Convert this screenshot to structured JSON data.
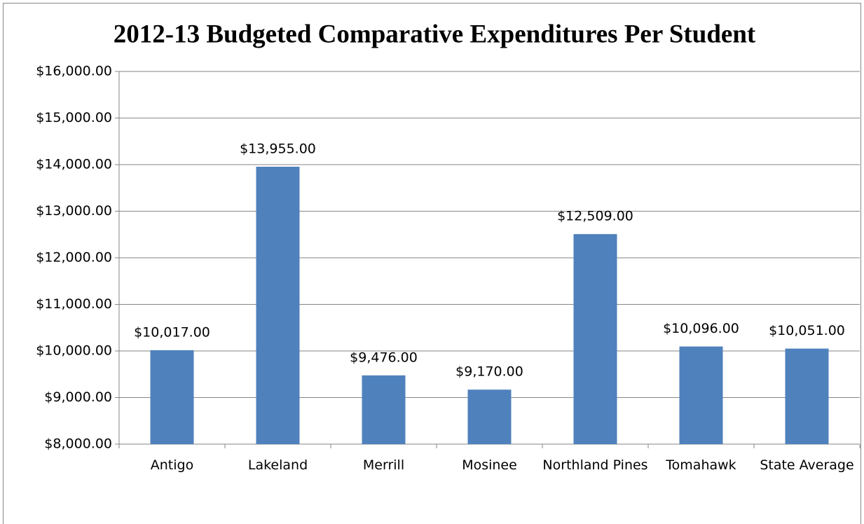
{
  "chart_data": {
    "type": "bar",
    "title": "2012-13 Budgeted Comparative Expenditures Per Student",
    "categories": [
      "Antigo",
      "Lakeland",
      "Merrill",
      "Mosinee",
      "Northland Pines",
      "Tomahawk",
      "State Average"
    ],
    "values": [
      10017,
      13955,
      9476,
      9170,
      12509,
      10096,
      10051
    ],
    "value_labels": [
      "$10,017.00",
      "$13,955.00",
      "$9,476.00",
      "$9,170.00",
      "$12,509.00",
      "$10,096.00",
      "$10,051.00"
    ],
    "color": "#4f81bd",
    "ylim": [
      8000,
      16000
    ],
    "yticks": [
      {
        "value": 8000,
        "label": "$8,000.00"
      },
      {
        "value": 9000,
        "label": "$9,000.00"
      },
      {
        "value": 10000,
        "label": "$10,000.00"
      },
      {
        "value": 11000,
        "label": "$11,000.00"
      },
      {
        "value": 12000,
        "label": "$12,000.00"
      },
      {
        "value": 13000,
        "label": "$13,000.00"
      },
      {
        "value": 14000,
        "label": "$14,000.00"
      },
      {
        "value": 15000,
        "label": "$15,000.00"
      },
      {
        "value": 16000,
        "label": "$16,000.00"
      }
    ],
    "grid": true
  }
}
